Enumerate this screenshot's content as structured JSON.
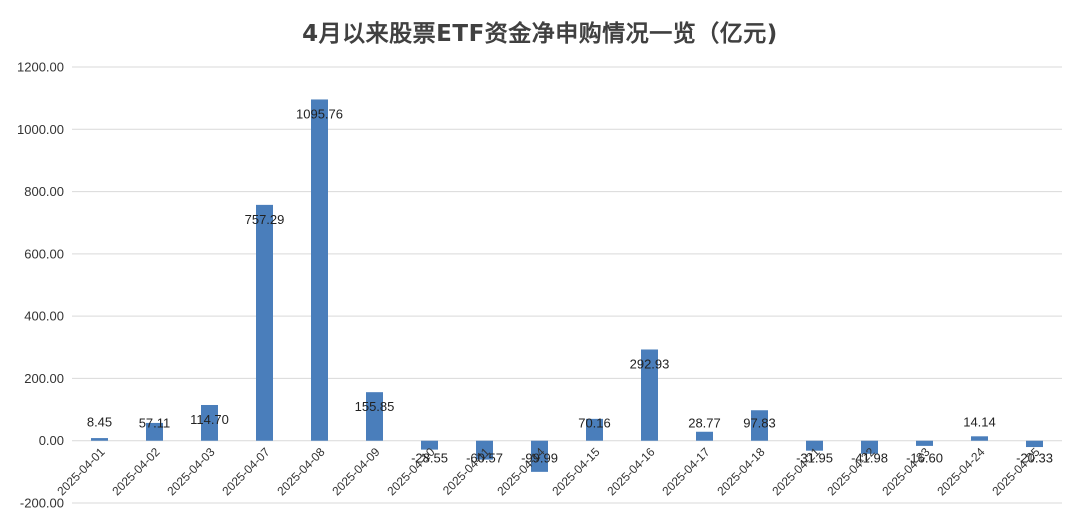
{
  "chart_data": {
    "type": "bar",
    "title": "4月以来股票ETF资金净申购情况一览（亿元)",
    "categories": [
      "2025-04-01",
      "2025-04-02",
      "2025-04-03",
      "2025-04-07",
      "2025-04-08",
      "2025-04-09",
      "2025-04-10",
      "2025-04-11",
      "2025-04-14",
      "2025-04-15",
      "2025-04-16",
      "2025-04-17",
      "2025-04-18",
      "2025-04-21",
      "2025-04-22",
      "2025-04-23",
      "2025-04-24",
      "2025-04-25"
    ],
    "values": [
      8.45,
      57.11,
      114.7,
      757.29,
      1095.76,
      155.85,
      -28.55,
      -60.57,
      -99.99,
      70.16,
      292.93,
      28.77,
      97.83,
      -31.95,
      -41.98,
      -16.6,
      14.14,
      -20.33
    ],
    "value_labels": [
      "8.45",
      "57.11",
      "114.70",
      "757.29",
      "1095.76",
      "155.85",
      "-28.55",
      "-60.57",
      "-99.99",
      "70.16",
      "292.93",
      "28.77",
      "97.83",
      "-31.95",
      "-41.98",
      "-16.60",
      "14.14",
      "-20.33"
    ],
    "yticks": [
      "-200.00",
      "0.00",
      "200.00",
      "400.00",
      "600.00",
      "800.00",
      "1000.00",
      "1200.00"
    ],
    "ylim": [
      -200,
      1200
    ],
    "grid": true,
    "bar_color": "#4a7ebb",
    "legend": "none"
  }
}
